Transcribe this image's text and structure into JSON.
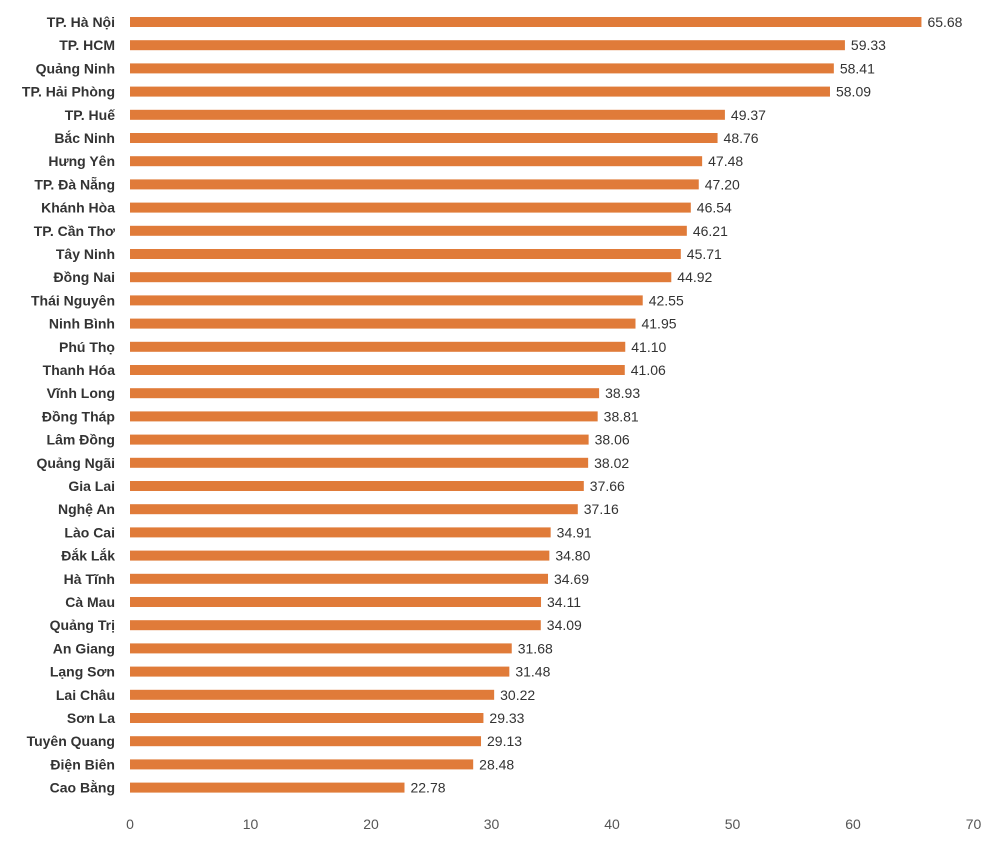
{
  "chart_data": {
    "type": "bar",
    "orientation": "horizontal",
    "categories": [
      "TP. Hà Nội",
      "TP. HCM",
      "Quảng Ninh",
      "TP. Hải Phòng",
      "TP. Huế",
      "Bắc Ninh",
      "Hưng Yên",
      "TP. Đà Nẵng",
      "Khánh Hòa",
      "TP. Cần Thơ",
      "Tây Ninh",
      "Đồng Nai",
      "Thái Nguyên",
      "Ninh Bình",
      "Phú Thọ",
      "Thanh Hóa",
      "Vĩnh Long",
      "Đồng Tháp",
      "Lâm Đồng",
      "Quảng Ngãi",
      "Gia Lai",
      "Nghệ An",
      "Lào Cai",
      "Đắk Lắk",
      "Hà Tĩnh",
      "Cà Mau",
      "Quảng Trị",
      "An Giang",
      "Lạng Sơn",
      "Lai Châu",
      "Sơn La",
      "Tuyên Quang",
      "Điện Biên",
      "Cao Bằng"
    ],
    "values": [
      65.68,
      59.33,
      58.41,
      58.09,
      49.37,
      48.76,
      47.48,
      47.2,
      46.54,
      46.21,
      45.71,
      44.92,
      42.55,
      41.95,
      41.1,
      41.06,
      38.93,
      38.81,
      38.06,
      38.02,
      37.66,
      37.16,
      34.91,
      34.8,
      34.69,
      34.11,
      34.09,
      31.68,
      31.48,
      30.22,
      29.33,
      29.13,
      28.48,
      22.78
    ],
    "value_labels": [
      "65.68",
      "59.33",
      "58.41",
      "58.09",
      "49.37",
      "48.76",
      "47.48",
      "47.20",
      "46.54",
      "46.21",
      "45.71",
      "44.92",
      "42.55",
      "41.95",
      "41.10",
      "41.06",
      "38.93",
      "38.81",
      "38.06",
      "38.02",
      "37.66",
      "37.16",
      "34.91",
      "34.80",
      "34.69",
      "34.11",
      "34.09",
      "31.68",
      "31.48",
      "30.22",
      "29.33",
      "29.13",
      "28.48",
      "22.78"
    ],
    "x_ticks": [
      "0",
      "10",
      "20",
      "30",
      "40",
      "50",
      "60",
      "70"
    ],
    "xlim": [
      0,
      70
    ],
    "grid": false,
    "legend": "none",
    "bar_color": "#E07B39",
    "title": "",
    "xlabel": "",
    "ylabel": ""
  }
}
